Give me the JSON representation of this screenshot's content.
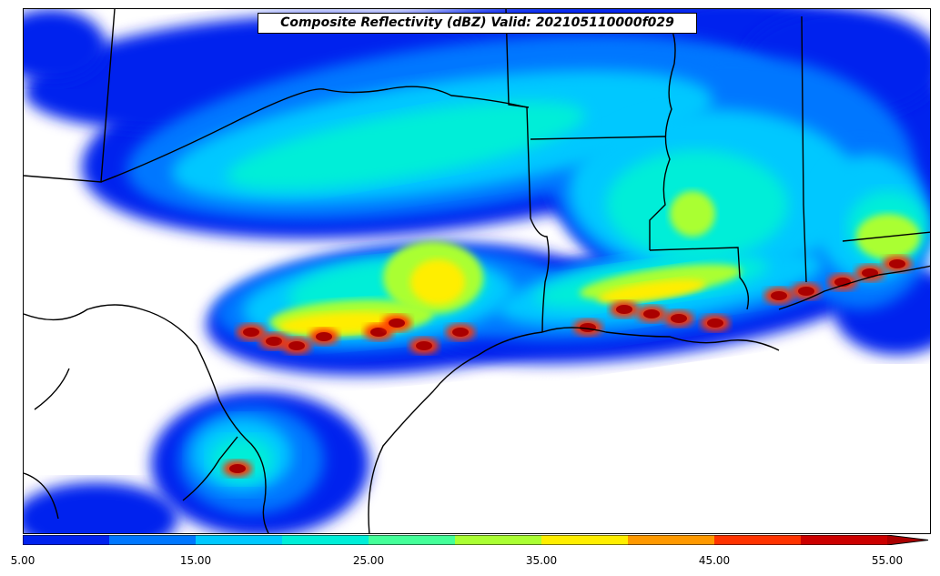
{
  "title": "Composite Reflectivity (dBZ) Valid: 202105110000f029",
  "colorbar": {
    "unit": "dBZ",
    "extend": "max",
    "levels": [
      5,
      10,
      15,
      20,
      25,
      30,
      35,
      40,
      45,
      50,
      55
    ],
    "colors": [
      "#0000aa",
      "#0022ee",
      "#0077ff",
      "#00c8ff",
      "#00eed8",
      "#44ff99",
      "#aaff33",
      "#ffee00",
      "#ff9900",
      "#ff3300",
      "#cc0000",
      "#aa0000"
    ],
    "tick_labels": [
      "5.00",
      "15.00",
      "25.00",
      "35.00",
      "45.00",
      "55.00"
    ]
  },
  "map": {
    "field": "composite reflectivity",
    "region": "Texas, Oklahoma, Arkansas, Louisiana, Mississippi, Gulf of Mexico coast",
    "colors": {
      "state_lines": "#000000",
      "background": "#ffffff"
    }
  }
}
